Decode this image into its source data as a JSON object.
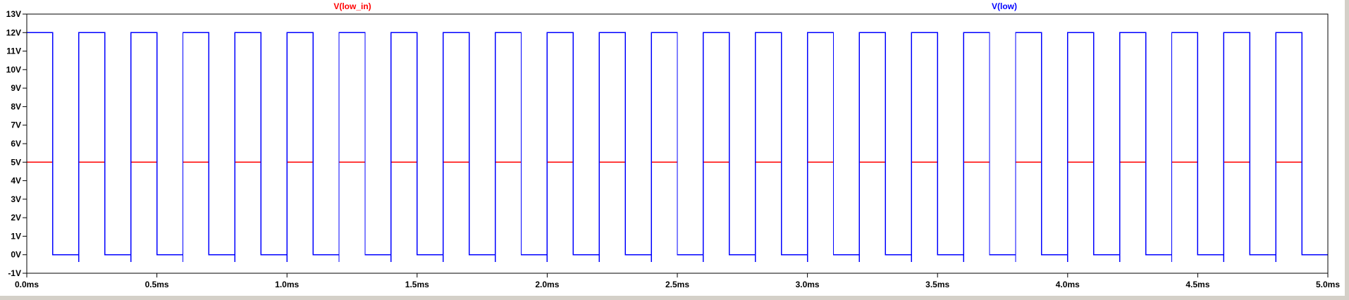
{
  "window": {
    "background": "#ffffff",
    "frame_color": "#d4d0c8"
  },
  "chart_data": {
    "type": "line",
    "title": "",
    "xlabel": "",
    "ylabel": "",
    "xlim": [
      0,
      5.0
    ],
    "ylim": [
      -1,
      13
    ],
    "x_unit": "ms",
    "y_unit": "V",
    "grid": false,
    "xticks": [
      {
        "value": 0.0,
        "label": "0.0ms"
      },
      {
        "value": 0.5,
        "label": "0.5ms"
      },
      {
        "value": 1.0,
        "label": "1.0ms"
      },
      {
        "value": 1.5,
        "label": "1.5ms"
      },
      {
        "value": 2.0,
        "label": "2.0ms"
      },
      {
        "value": 2.5,
        "label": "2.5ms"
      },
      {
        "value": 3.0,
        "label": "3.0ms"
      },
      {
        "value": 3.5,
        "label": "3.5ms"
      },
      {
        "value": 4.0,
        "label": "4.0ms"
      },
      {
        "value": 4.5,
        "label": "4.5ms"
      },
      {
        "value": 5.0,
        "label": "5.0ms"
      }
    ],
    "yticks": [
      {
        "value": 13,
        "label": "13V"
      },
      {
        "value": 12,
        "label": "12V"
      },
      {
        "value": 11,
        "label": "11V"
      },
      {
        "value": 10,
        "label": "10V"
      },
      {
        "value": 9,
        "label": "9V"
      },
      {
        "value": 8,
        "label": "8V"
      },
      {
        "value": 7,
        "label": "7V"
      },
      {
        "value": 6,
        "label": "6V"
      },
      {
        "value": 5,
        "label": "5V"
      },
      {
        "value": 4,
        "label": "4V"
      },
      {
        "value": 3,
        "label": "3V"
      },
      {
        "value": 2,
        "label": "2V"
      },
      {
        "value": 1,
        "label": "1V"
      },
      {
        "value": 0,
        "label": "0V"
      },
      {
        "value": -1,
        "label": "-1V"
      }
    ],
    "period_ms": 0.2,
    "high_duration_ms": 0.1,
    "series": [
      {
        "name": "V(low_in)",
        "color": "#ff0000",
        "high_v": 5,
        "low_v": 0,
        "start_ms": 0.0,
        "end_ms": 4.94
      },
      {
        "name": "V(low)",
        "color": "#0000ff",
        "high_v": 12,
        "low_v": 0,
        "undershoot_v": -0.4,
        "start_ms": 0.0,
        "end_ms": 5.0
      }
    ]
  }
}
